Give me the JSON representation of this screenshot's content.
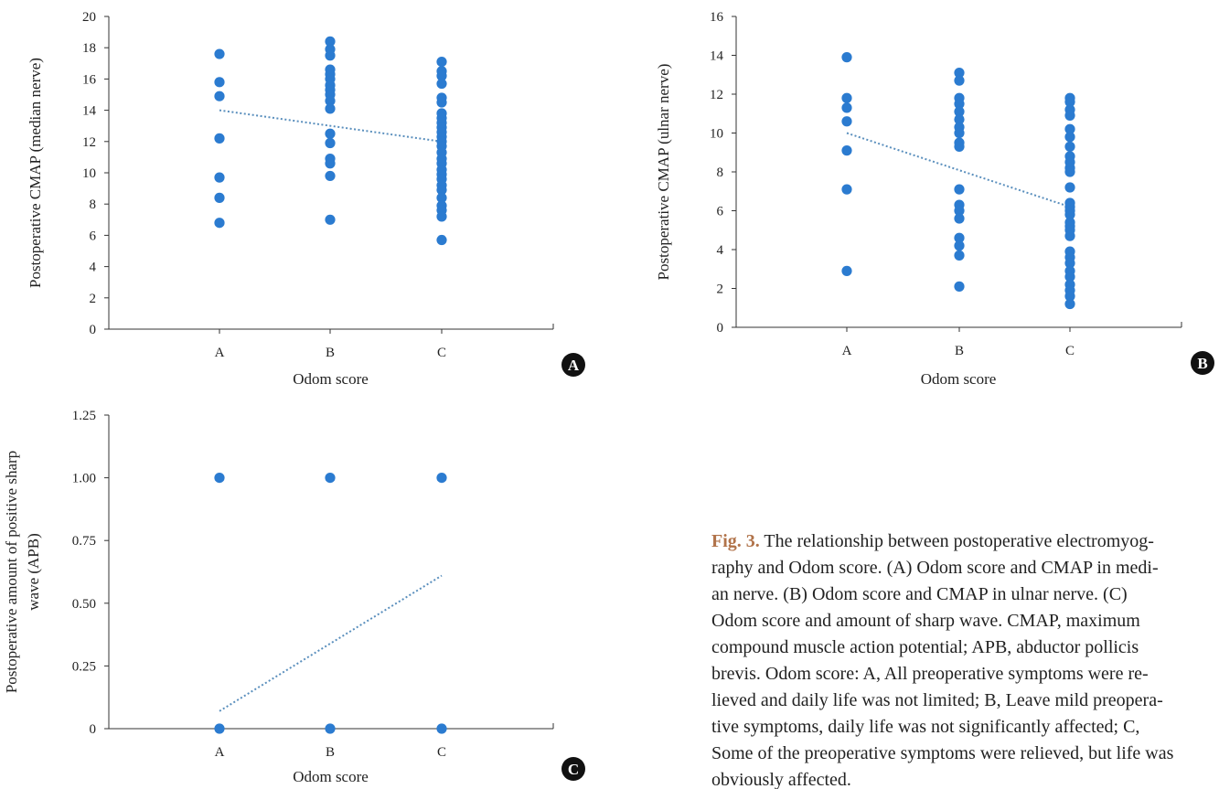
{
  "figure": {
    "colors": {
      "points": "#2b7bd0",
      "trend": "#5a8fbd",
      "axis": "#333333",
      "badge": "#111111",
      "caption_label": "#b1734a"
    },
    "caption": {
      "label": "Fig. 3.",
      "lines": [
        "The relationship between postoperative electromyog-",
        "raphy and Odom score. (A) Odom score and CMAP in medi-",
        "an nerve. (B) Odom score and CMAP in ulnar nerve. (C)",
        "Odom score and amount of sharp wave. CMAP, maximum",
        "compound muscle action potential; APB, abductor pollicis",
        "brevis. Odom score: A, All preoperative symptoms were re-",
        "lieved and daily life was not limited; B, Leave mild preopera-",
        "tive symptoms, daily life was not significantly affected; C,",
        "Some of the preoperative symptoms were relieved, but life was",
        "obviously affected."
      ]
    }
  },
  "chart_data": [
    {
      "panel": "A",
      "type": "scatter",
      "xlabel": "Odom score",
      "ylabel": "Postoperative CMAP (median nerve)",
      "categories": [
        "A",
        "B",
        "C"
      ],
      "ylim": [
        0,
        20
      ],
      "yticks": [
        "0",
        "2",
        "4",
        "6",
        "8",
        "10",
        "12",
        "14",
        "16",
        "18",
        "20"
      ],
      "grid": false,
      "legend": "none",
      "series": [
        {
          "category": "A",
          "values": [
            17.6,
            15.8,
            14.9,
            12.2,
            9.7,
            8.4,
            6.8
          ]
        },
        {
          "category": "B",
          "values": [
            18.4,
            17.9,
            17.5,
            16.6,
            16.3,
            16.0,
            15.6,
            15.3,
            15.0,
            14.6,
            14.1,
            12.5,
            11.9,
            10.9,
            10.6,
            9.8,
            7.0
          ]
        },
        {
          "category": "C",
          "values": [
            17.1,
            16.5,
            16.2,
            15.7,
            14.8,
            14.5,
            13.8,
            13.5,
            13.2,
            12.9,
            12.6,
            12.3,
            12.0,
            11.7,
            11.3,
            10.9,
            10.6,
            10.2,
            9.9,
            9.6,
            9.2,
            8.9,
            8.4,
            7.9,
            7.6,
            7.2,
            5.7
          ]
        }
      ],
      "trend": {
        "start": 14.0,
        "end": 12.0
      }
    },
    {
      "panel": "B",
      "type": "scatter",
      "xlabel": "Odom score",
      "ylabel": "Postoperative CMAP (ulnar nerve)",
      "categories": [
        "A",
        "B",
        "C"
      ],
      "ylim": [
        0,
        16
      ],
      "yticks": [
        "0",
        "2",
        "4",
        "6",
        "8",
        "10",
        "12",
        "14",
        "16"
      ],
      "grid": false,
      "legend": "none",
      "series": [
        {
          "category": "A",
          "values": [
            13.9,
            11.8,
            11.3,
            10.6,
            9.1,
            7.1,
            2.9
          ]
        },
        {
          "category": "B",
          "values": [
            13.1,
            12.7,
            11.8,
            11.5,
            11.1,
            10.7,
            10.3,
            10.0,
            9.5,
            9.3,
            7.1,
            6.3,
            6.0,
            5.6,
            4.6,
            4.2,
            3.7,
            2.1
          ]
        },
        {
          "category": "C",
          "values": [
            11.8,
            11.6,
            11.2,
            10.9,
            10.2,
            9.8,
            9.3,
            8.8,
            8.5,
            8.2,
            8.0,
            7.2,
            6.4,
            6.2,
            6.0,
            5.8,
            5.4,
            5.2,
            5.0,
            4.7,
            3.9,
            3.6,
            3.3,
            2.9,
            2.6,
            2.2,
            1.9,
            1.6,
            1.2
          ]
        }
      ],
      "trend": {
        "start": 10.0,
        "end": 6.2
      }
    },
    {
      "panel": "C",
      "type": "scatter",
      "xlabel": "Odom score",
      "ylabel": "Postoperative amount of positive sharp wave (APB)",
      "ylabel_lines": [
        "Postoperative amount of positive sharp",
        "wave (APB)"
      ],
      "categories": [
        "A",
        "B",
        "C"
      ],
      "ylim": [
        0,
        1.25
      ],
      "yticks": [
        "0",
        "0.25",
        "0.50",
        "0.75",
        "1.00",
        "1.25"
      ],
      "grid": false,
      "legend": "none",
      "series": [
        {
          "category": "A",
          "values": [
            1.0,
            0
          ]
        },
        {
          "category": "B",
          "values": [
            1.0,
            0
          ]
        },
        {
          "category": "C",
          "values": [
            1.0,
            0
          ]
        }
      ],
      "trend": {
        "start": 0.07,
        "end": 0.61
      }
    }
  ]
}
